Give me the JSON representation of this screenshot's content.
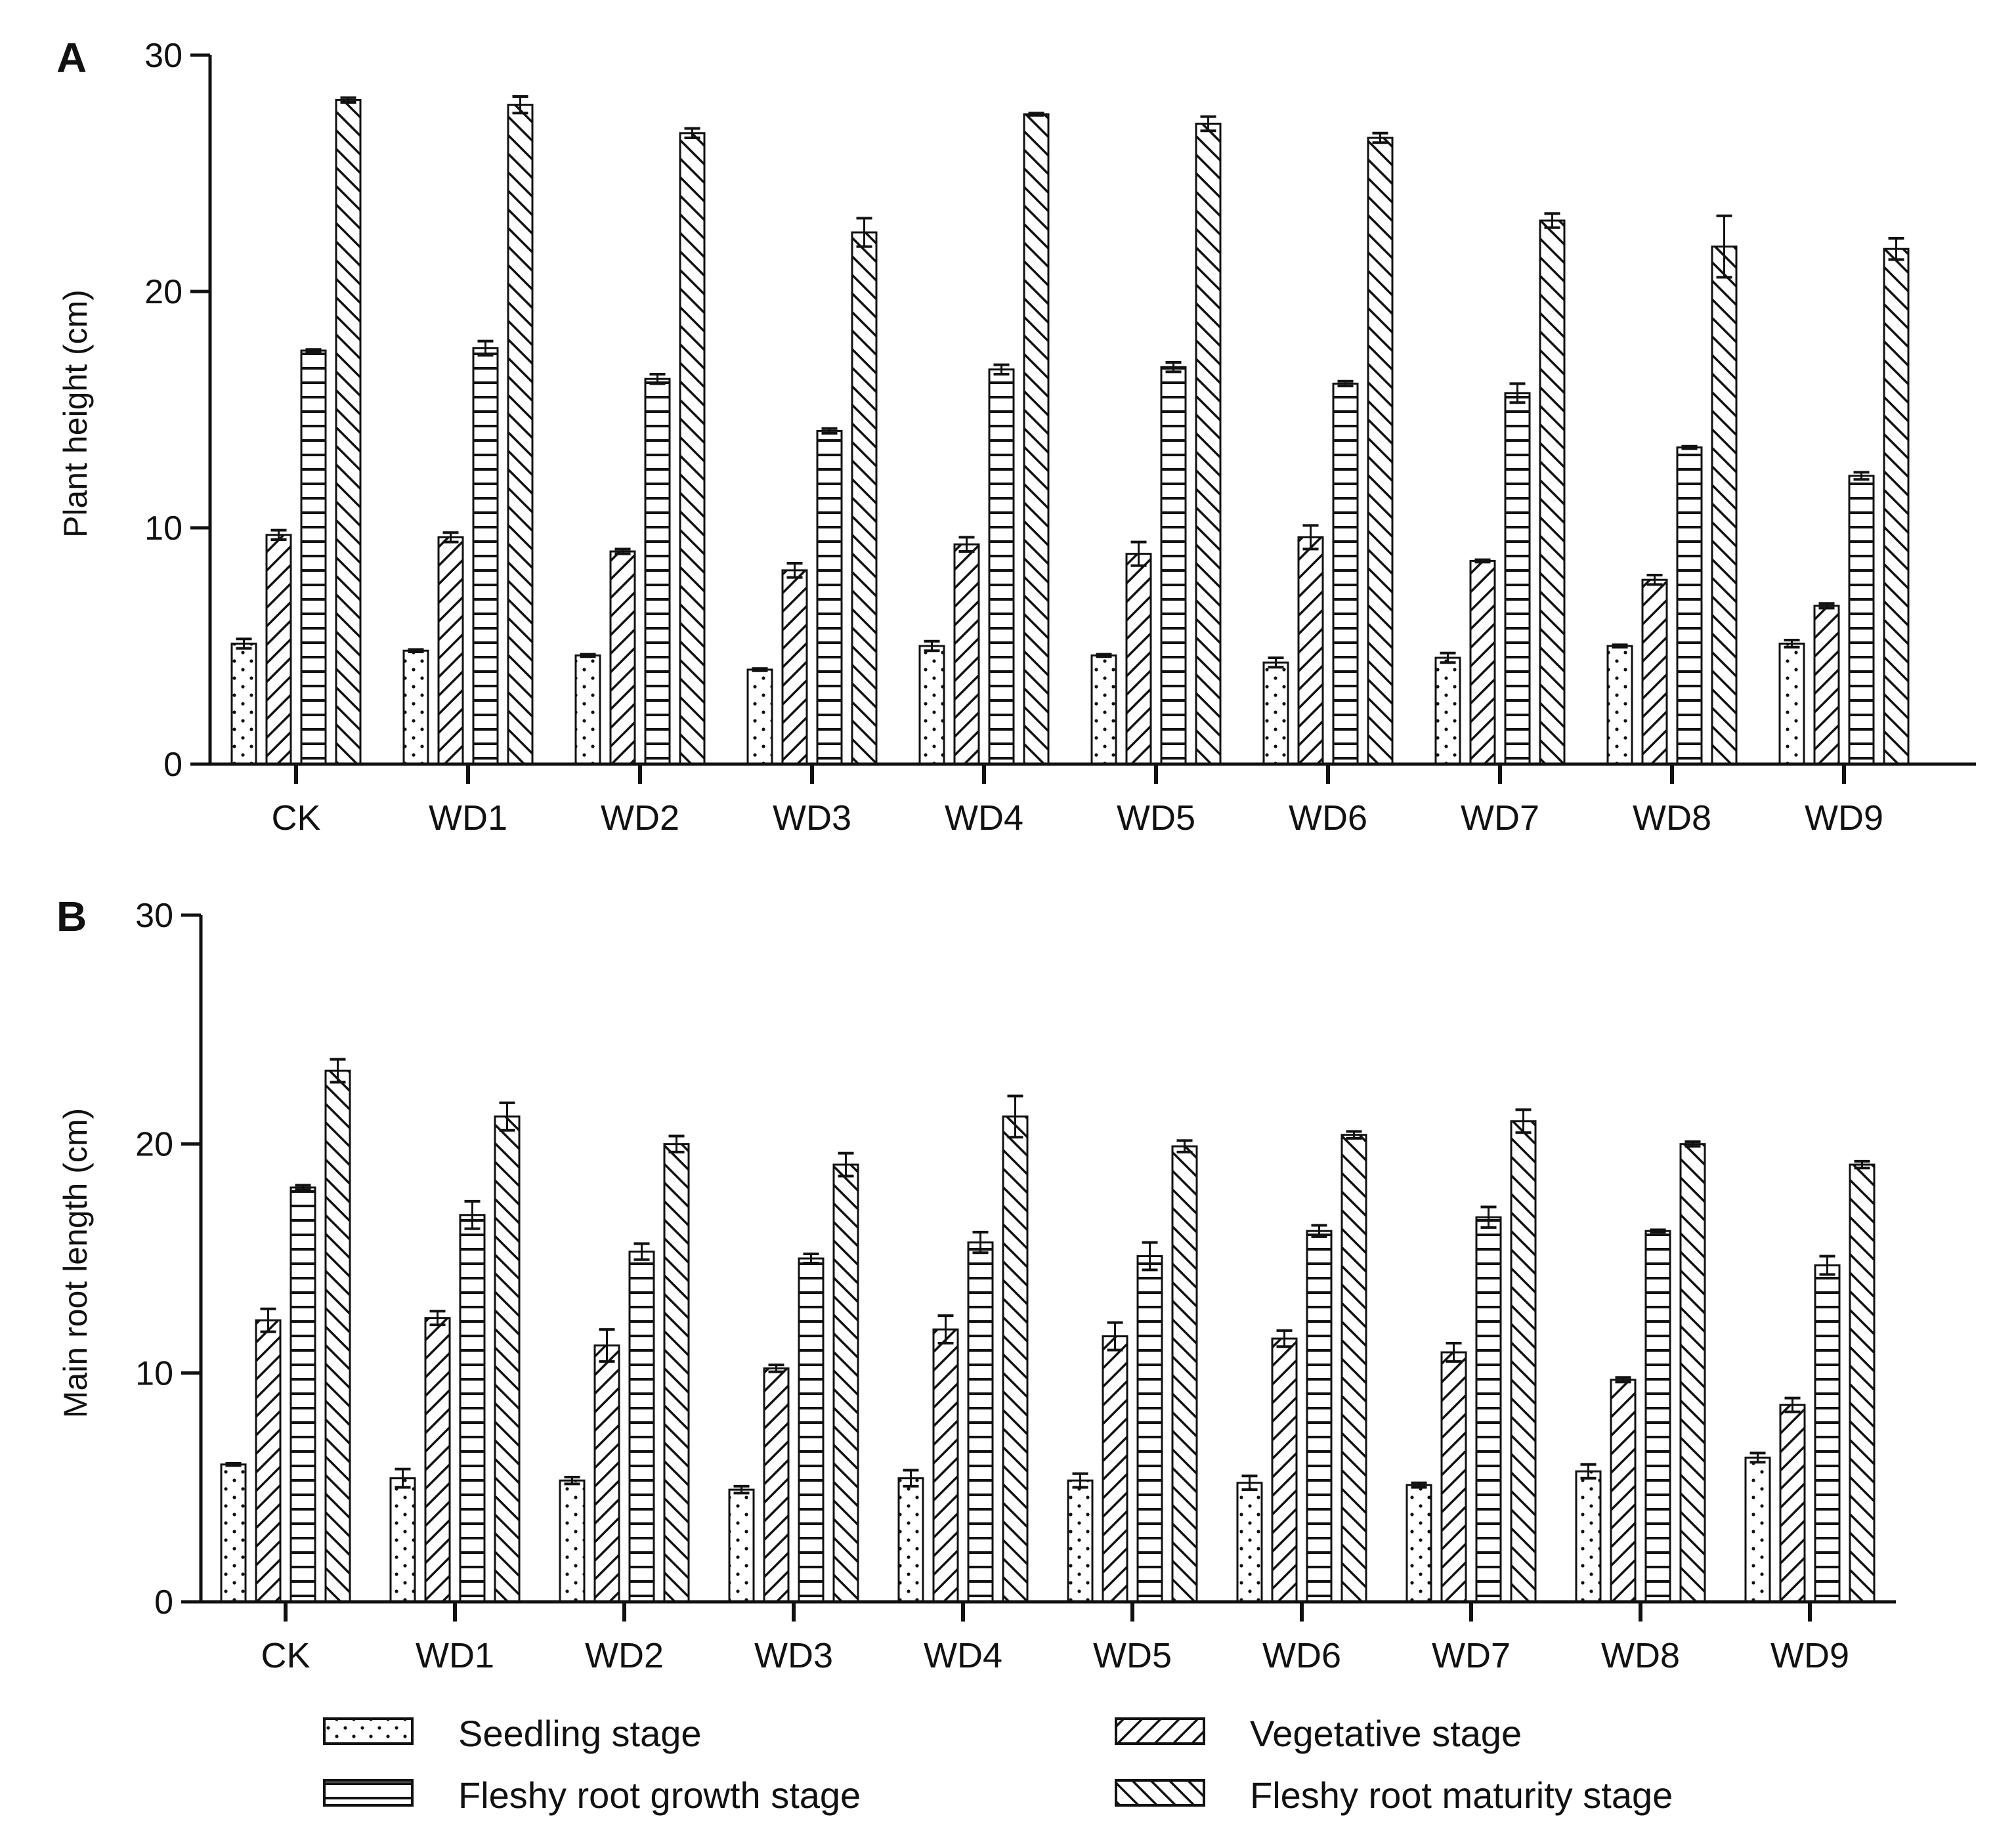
{
  "legend": [
    {
      "name": "Seedling stage",
      "pattern": "dots"
    },
    {
      "name": "Vegetative stage",
      "pattern": "back-diag"
    },
    {
      "name": "Fleshy root growth stage",
      "pattern": "hlines"
    },
    {
      "name": "Fleshy root maturity stage",
      "pattern": "fwd-diag"
    }
  ],
  "chart_data": [
    {
      "type": "bar",
      "panel": "A",
      "ylabel": "Plant height (cm)",
      "ylim": [
        0,
        30
      ],
      "yticks": [
        "0",
        "10",
        "20",
        "30"
      ],
      "categories": [
        "CK",
        "WD1",
        "WD2",
        "WD3",
        "WD4",
        "WD5",
        "WD6",
        "WD7",
        "WD8",
        "WD9"
      ],
      "series": [
        {
          "name": "Seedling stage",
          "values": [
            5.1,
            4.8,
            4.6,
            4.0,
            5.0,
            4.6,
            4.3,
            4.5,
            5.0,
            5.1
          ],
          "errors": [
            0.2,
            0.05,
            0.05,
            0.05,
            0.2,
            0.05,
            0.2,
            0.2,
            0.05,
            0.15
          ]
        },
        {
          "name": "Vegetative stage",
          "values": [
            9.7,
            9.6,
            9.0,
            8.2,
            9.3,
            8.9,
            9.6,
            8.6,
            7.8,
            6.7
          ],
          "errors": [
            0.2,
            0.2,
            0.1,
            0.3,
            0.3,
            0.5,
            0.5,
            0.05,
            0.2,
            0.1
          ]
        },
        {
          "name": "Fleshy root growth stage",
          "values": [
            17.5,
            17.6,
            16.3,
            14.1,
            16.7,
            16.8,
            16.1,
            15.7,
            13.4,
            12.2
          ],
          "errors": [
            0.05,
            0.3,
            0.2,
            0.1,
            0.2,
            0.2,
            0.1,
            0.4,
            0.05,
            0.15
          ]
        },
        {
          "name": "Fleshy root maturity stage",
          "values": [
            28.1,
            27.9,
            26.7,
            22.5,
            27.5,
            27.1,
            26.5,
            23.0,
            21.9,
            21.8
          ],
          "errors": [
            0.1,
            0.35,
            0.2,
            0.6,
            0.05,
            0.3,
            0.2,
            0.3,
            1.3,
            0.45
          ]
        }
      ]
    },
    {
      "type": "bar",
      "panel": "B",
      "ylabel": "Main root length (cm)",
      "ylim": [
        0,
        30
      ],
      "yticks": [
        "0",
        "10",
        "20",
        "30"
      ],
      "categories": [
        "CK",
        "WD1",
        "WD2",
        "WD3",
        "WD4",
        "WD5",
        "WD6",
        "WD7",
        "WD8",
        "WD9"
      ],
      "series": [
        {
          "name": "Seedling stage",
          "values": [
            6.0,
            5.4,
            5.3,
            4.9,
            5.4,
            5.3,
            5.2,
            5.1,
            5.7,
            6.3
          ],
          "errors": [
            0.05,
            0.4,
            0.15,
            0.15,
            0.35,
            0.3,
            0.3,
            0.1,
            0.3,
            0.2
          ]
        },
        {
          "name": "Vegetative stage",
          "values": [
            12.3,
            12.4,
            11.2,
            10.2,
            11.9,
            11.6,
            11.5,
            10.9,
            9.7,
            8.6
          ],
          "errors": [
            0.5,
            0.3,
            0.7,
            0.15,
            0.6,
            0.6,
            0.35,
            0.4,
            0.1,
            0.3
          ]
        },
        {
          "name": "Fleshy root growth stage",
          "values": [
            18.1,
            16.9,
            15.3,
            15.0,
            15.7,
            15.1,
            16.2,
            16.8,
            16.2,
            14.7
          ],
          "errors": [
            0.1,
            0.6,
            0.35,
            0.2,
            0.45,
            0.6,
            0.25,
            0.45,
            0.05,
            0.4
          ]
        },
        {
          "name": "Fleshy root maturity stage",
          "values": [
            23.2,
            21.2,
            20.0,
            19.1,
            21.2,
            19.9,
            20.4,
            21.0,
            20.0,
            19.1
          ],
          "errors": [
            0.5,
            0.6,
            0.35,
            0.5,
            0.9,
            0.25,
            0.15,
            0.5,
            0.1,
            0.15
          ]
        }
      ]
    }
  ]
}
